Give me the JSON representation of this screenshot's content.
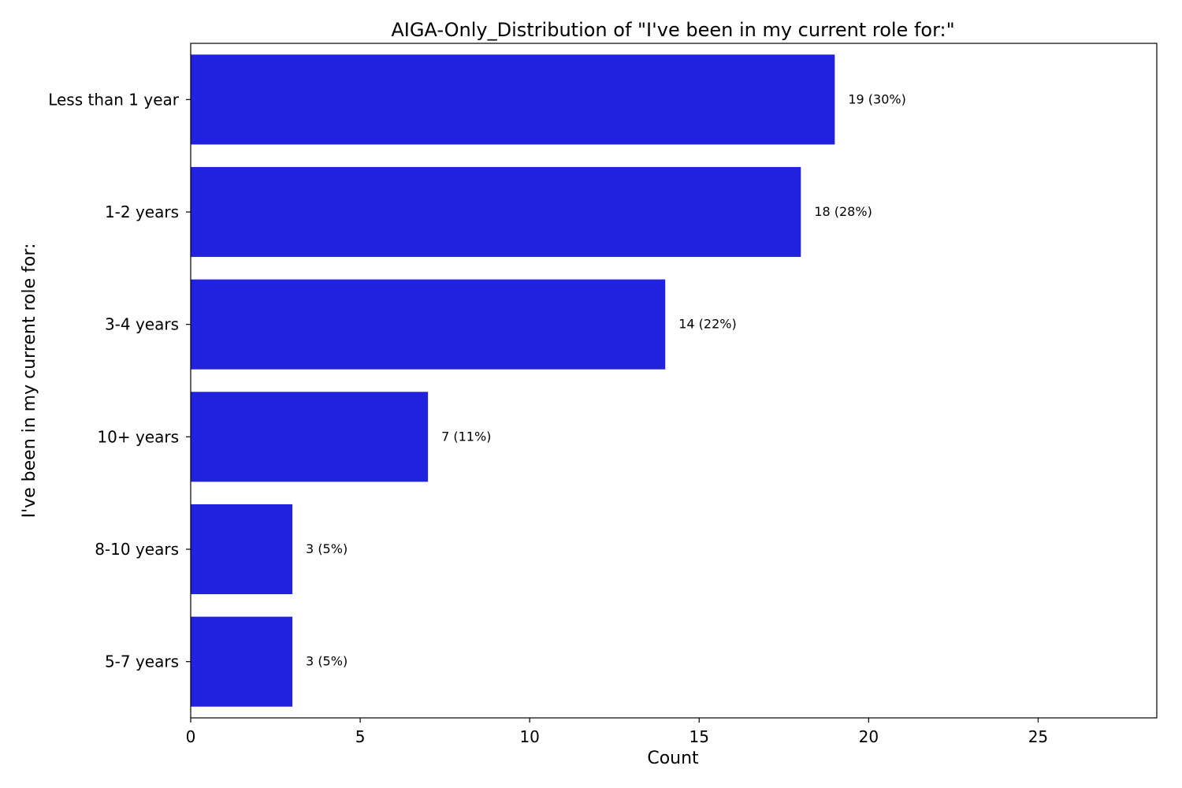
{
  "chart_data": {
    "type": "bar",
    "orientation": "horizontal",
    "title": "AIGA-Only_Distribution of \"I've been in my current role for:\"",
    "xlabel": "Count",
    "ylabel": "I've been in my current role for:",
    "categories": [
      "Less than 1 year",
      "1-2 years",
      "3-4 years",
      "10+ years",
      "8-10 years",
      "5-7 years"
    ],
    "values": [
      19,
      18,
      14,
      7,
      3,
      3
    ],
    "data_labels": [
      "19 (30%)",
      "18 (28%)",
      "14 (22%)",
      "7 (11%)",
      "3 (5%)",
      "3 (5%)"
    ],
    "xlim": [
      0,
      28.5
    ],
    "xticks": [
      0,
      5,
      10,
      15,
      20,
      25
    ],
    "bar_color": "#2121e0",
    "grid": false,
    "legend": "none"
  }
}
